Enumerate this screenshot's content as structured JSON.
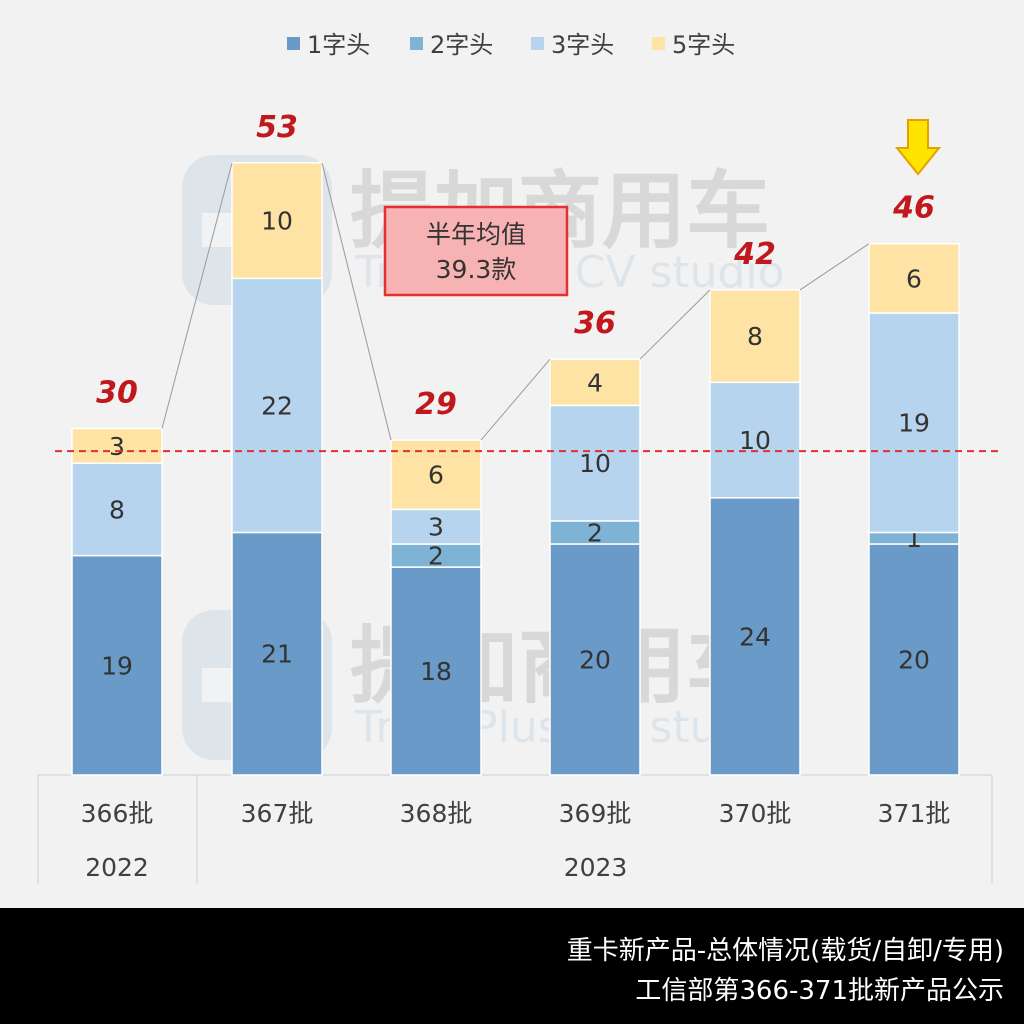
{
  "legend": [
    {
      "label": "1字头",
      "color": "#6a9bc8"
    },
    {
      "label": "2字头",
      "color": "#7fb3d5"
    },
    {
      "label": "3字头",
      "color": "#b6d4ee"
    },
    {
      "label": "5字头",
      "color": "#ffe3a5"
    }
  ],
  "watermark": {
    "cn": "提加商用车",
    "en": "TruckPlus CV studio"
  },
  "average_box": {
    "title": "半年均值",
    "value": "39.3款"
  },
  "chart_data": {
    "type": "bar",
    "stacked": true,
    "categories": [
      "366批",
      "367批",
      "368批",
      "369批",
      "370批",
      "371批"
    ],
    "year_groups": [
      {
        "label": "2022",
        "from": 0,
        "to": 0
      },
      {
        "label": "2023",
        "from": 1,
        "to": 5
      }
    ],
    "series": [
      {
        "name": "1字头",
        "values": [
          19,
          21,
          18,
          20,
          24,
          20
        ]
      },
      {
        "name": "2字头",
        "values": [
          0,
          0,
          2,
          2,
          0,
          1
        ]
      },
      {
        "name": "3字头",
        "values": [
          8,
          22,
          3,
          10,
          10,
          19
        ]
      },
      {
        "name": "5字头",
        "values": [
          3,
          10,
          6,
          4,
          8,
          6
        ]
      }
    ],
    "totals": [
      30,
      53,
      29,
      36,
      42,
      46
    ],
    "average": 39.3,
    "highlight_index": 5,
    "ylim": [
      0,
      53
    ],
    "legend_position": "top-center"
  },
  "footer": {
    "line1": "重卡新产品-总体情况(载货/自卸/专用)",
    "line2": "工信部第366-371批新产品公示"
  }
}
